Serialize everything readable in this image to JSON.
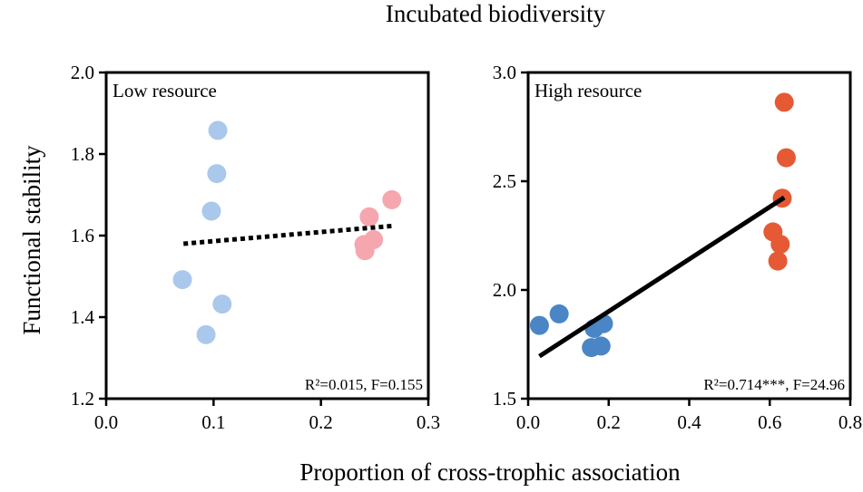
{
  "figure": {
    "title": "Incubated biodiversity",
    "ylabel": "Functional stability",
    "xlabel": "Proportion of cross-trophic association"
  },
  "chart_data": [
    {
      "type": "scatter",
      "panel_label": "Low resource",
      "stat_text": "R²=0.015, F=0.155",
      "xlim": [
        0.0,
        0.3
      ],
      "ylim": [
        1.2,
        2.0
      ],
      "x_ticks": [
        "0.0",
        "0.1",
        "0.2",
        "0.3"
      ],
      "y_ticks": [
        "1.2",
        "1.4",
        "1.6",
        "1.8",
        "2.0"
      ],
      "grid": false,
      "series": [
        {
          "color": "#a9c8ec",
          "points": [
            {
              "x": 0.104,
              "y": 1.858
            },
            {
              "x": 0.103,
              "y": 1.752
            },
            {
              "x": 0.098,
              "y": 1.66
            },
            {
              "x": 0.071,
              "y": 1.492
            },
            {
              "x": 0.108,
              "y": 1.432
            },
            {
              "x": 0.093,
              "y": 1.357
            }
          ]
        },
        {
          "color": "#f6a6ae",
          "points": [
            {
              "x": 0.266,
              "y": 1.688
            },
            {
              "x": 0.245,
              "y": 1.646
            },
            {
              "x": 0.249,
              "y": 1.59
            },
            {
              "x": 0.24,
              "y": 1.578
            },
            {
              "x": 0.241,
              "y": 1.563
            }
          ]
        }
      ],
      "fit_line": {
        "style": "dashed",
        "x": [
          0.072,
          0.268
        ],
        "y": [
          1.58,
          1.624
        ]
      }
    },
    {
      "type": "scatter",
      "panel_label": "High resource",
      "stat_text": "R²=0.714***, F=24.96",
      "xlim": [
        0.0,
        0.8
      ],
      "ylim": [
        1.5,
        3.0
      ],
      "x_ticks": [
        "0.0",
        "0.2",
        "0.4",
        "0.6",
        "0.8"
      ],
      "y_ticks": [
        "1.5",
        "2.0",
        "2.5",
        "3.0"
      ],
      "grid": false,
      "series": [
        {
          "color": "#4a86c5",
          "points": [
            {
              "x": 0.028,
              "y": 1.837
            },
            {
              "x": 0.077,
              "y": 1.89
            },
            {
              "x": 0.157,
              "y": 1.735
            },
            {
              "x": 0.181,
              "y": 1.742
            },
            {
              "x": 0.164,
              "y": 1.823
            },
            {
              "x": 0.187,
              "y": 1.845
            }
          ]
        },
        {
          "color": "#e55a34",
          "points": [
            {
              "x": 0.636,
              "y": 2.863
            },
            {
              "x": 0.641,
              "y": 2.608
            },
            {
              "x": 0.631,
              "y": 2.422
            },
            {
              "x": 0.608,
              "y": 2.267
            },
            {
              "x": 0.626,
              "y": 2.21
            },
            {
              "x": 0.62,
              "y": 2.133
            }
          ]
        }
      ],
      "fit_line": {
        "style": "solid",
        "x": [
          0.028,
          0.636
        ],
        "y": [
          1.695,
          2.425
        ]
      }
    }
  ]
}
